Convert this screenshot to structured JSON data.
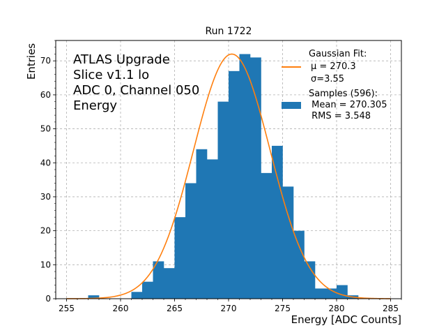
{
  "chart_data": {
    "type": "bar",
    "title": "Run 1722",
    "xlabel": "Energy [ADC Counts]",
    "ylabel": "Entries",
    "xlim": [
      254,
      286
    ],
    "ylim": [
      0,
      76
    ],
    "grid": true,
    "x_ticks": [
      "255",
      "260",
      "265",
      "270",
      "275",
      "280",
      "285"
    ],
    "y_ticks": [
      "0",
      "10",
      "20",
      "30",
      "40",
      "50",
      "60",
      "70"
    ],
    "annotation_lines": [
      "ATLAS Upgrade",
      "Slice v1.1 lo",
      "ADC 0, Channel 050",
      "Energy"
    ],
    "bin_width": 1,
    "histogram": {
      "name": "Samples (596):",
      "color": "#1f77b4",
      "bin_left_edges": [
        257,
        258,
        259,
        260,
        261,
        262,
        263,
        264,
        265,
        266,
        267,
        268,
        269,
        270,
        271,
        272,
        273,
        274,
        275,
        276,
        277,
        278,
        279,
        280,
        281
      ],
      "values": [
        1,
        0,
        0,
        0,
        2,
        5,
        11,
        9,
        24,
        34,
        44,
        41,
        58,
        67,
        72,
        71,
        37,
        45,
        33,
        20,
        11,
        3,
        3,
        4,
        1
      ]
    },
    "fit": {
      "name": "Gaussian Fit:",
      "color": "#ff7f0e",
      "mu": 270.3,
      "sigma": 3.55,
      "amplitude": 72,
      "x_range": [
        255,
        285
      ]
    },
    "legend": {
      "position": "top-right",
      "fit_lines": [
        "Gaussian Fit:",
        "μ = 270.3",
        "σ=3.55"
      ],
      "hist_lines": [
        "Samples (596):",
        " Mean = 270.305",
        " RMS = 3.548"
      ]
    }
  }
}
